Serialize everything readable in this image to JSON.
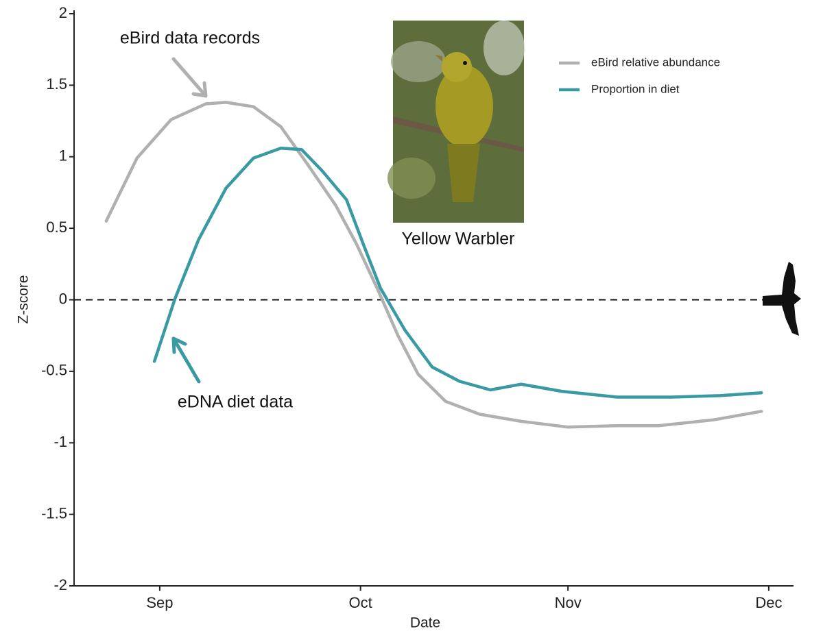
{
  "chart_data": {
    "type": "line",
    "annotations": [
      "eBird data records",
      "eDNA diet data",
      "Yellow Warbler"
    ],
    "x_label": "Date",
    "y_label": "Z-score",
    "xlim": [
      -12.8,
      94.7
    ],
    "xticks": [
      {
        "value": 0,
        "label": "Sep"
      },
      {
        "value": 30,
        "label": "Oct"
      },
      {
        "value": 61,
        "label": "Nov"
      },
      {
        "value": 91,
        "label": "Dec"
      }
    ],
    "ylim": [
      -2,
      2
    ],
    "yticks": [
      2,
      1.5,
      1,
      0.5,
      0,
      -0.5,
      -1,
      -1.5,
      -2
    ],
    "reference_line": 0,
    "series": [
      {
        "name": "eBird relative abundance",
        "color": "#b0b0b0",
        "x": [
          -8,
          -3.4,
          1.7,
          6.9,
          9.9,
          14,
          18.1,
          22.2,
          26.3,
          29.4,
          32.5,
          35.6,
          38.6,
          42.7,
          47.8,
          54,
          61,
          68.3,
          74.5,
          82.7,
          89.9
        ],
        "values": [
          0.55,
          0.99,
          1.26,
          1.37,
          1.38,
          1.35,
          1.21,
          0.94,
          0.66,
          0.39,
          0.08,
          -0.25,
          -0.52,
          -0.71,
          -0.8,
          -0.85,
          -0.89,
          -0.88,
          -0.88,
          -0.84,
          -0.78
        ]
      },
      {
        "name": "Proportion in diet",
        "color": "#3a9aa3",
        "x": [
          -0.8,
          2.3,
          5.8,
          9.9,
          14,
          18.1,
          21.2,
          24.3,
          27.9,
          30.4,
          33,
          36.6,
          40.7,
          44.8,
          49.4,
          54,
          60.1,
          68.3,
          76.5,
          83.7,
          89.9
        ],
        "values": [
          -0.43,
          0.01,
          0.42,
          0.78,
          0.99,
          1.06,
          1.05,
          0.9,
          0.7,
          0.39,
          0.08,
          -0.21,
          -0.47,
          -0.57,
          -0.63,
          -0.59,
          -0.64,
          -0.68,
          -0.68,
          -0.67,
          -0.65
        ]
      }
    ]
  }
}
